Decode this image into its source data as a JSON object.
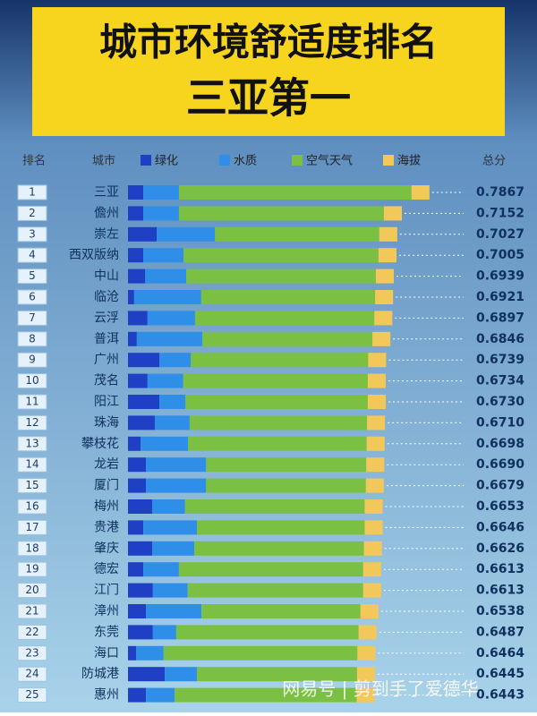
{
  "chart_data": {
    "type": "stacked_barh",
    "title": "城市环境舒适度排名",
    "subtitle": "三亚第一",
    "rank_header": "排名",
    "category_header": "城市",
    "total_header": "总分",
    "watermark": "网易号 | 剪到手了爱德华",
    "ranks": [
      1,
      2,
      3,
      4,
      5,
      6,
      7,
      8,
      9,
      10,
      11,
      12,
      13,
      14,
      15,
      16,
      17,
      18,
      19,
      20,
      21,
      22,
      23,
      24,
      25
    ],
    "categories": [
      "三亚",
      "儋州",
      "崇左",
      "西双版纳",
      "中山",
      "临沧",
      "云浮",
      "普洱",
      "广州",
      "茂名",
      "阳江",
      "珠海",
      "攀枝花",
      "龙岩",
      "厦门",
      "梅州",
      "贵港",
      "肇庆",
      "德宏",
      "江门",
      "漳州",
      "东莞",
      "海口",
      "防城港",
      "惠州"
    ],
    "series": [
      {
        "name": "绿化",
        "color": "#1f3fc4",
        "values": [
          0.04,
          0.04,
          0.075,
          0.04,
          0.045,
          0.016,
          0.051,
          0.023,
          0.082,
          0.051,
          0.082,
          0.07,
          0.033,
          0.047,
          0.047,
          0.063,
          0.04,
          0.063,
          0.04,
          0.065,
          0.047,
          0.065,
          0.021,
          0.096,
          0.047
        ]
      },
      {
        "name": "水质",
        "color": "#2f8ee8",
        "values": [
          0.093,
          0.093,
          0.152,
          0.105,
          0.107,
          0.175,
          0.124,
          0.171,
          0.082,
          0.093,
          0.068,
          0.091,
          0.124,
          0.157,
          0.157,
          0.086,
          0.14,
          0.11,
          0.093,
          0.091,
          0.145,
          0.061,
          0.072,
          0.084,
          0.075
        ]
      },
      {
        "name": "空气天气",
        "color": "#7cc043",
        "values": [
          0.607,
          0.535,
          0.429,
          0.509,
          0.495,
          0.454,
          0.468,
          0.444,
          0.463,
          0.482,
          0.476,
          0.463,
          0.466,
          0.418,
          0.417,
          0.469,
          0.438,
          0.443,
          0.481,
          0.458,
          0.415,
          0.476,
          0.506,
          0.418,
          0.475
        ]
      },
      {
        "name": "海拔",
        "color": "#f2c85a",
        "values": [
          0.047,
          0.047,
          0.047,
          0.047,
          0.047,
          0.047,
          0.047,
          0.047,
          0.047,
          0.047,
          0.047,
          0.047,
          0.047,
          0.047,
          0.047,
          0.047,
          0.047,
          0.047,
          0.047,
          0.047,
          0.047,
          0.047,
          0.047,
          0.047,
          0.047
        ]
      }
    ],
    "totals": [
      0.7867,
      0.7152,
      0.7027,
      0.7005,
      0.6939,
      0.6921,
      0.6897,
      0.6846,
      0.6739,
      0.6734,
      0.673,
      0.671,
      0.6698,
      0.669,
      0.6679,
      0.6653,
      0.6646,
      0.6626,
      0.6613,
      0.6613,
      0.6538,
      0.6487,
      0.6464,
      0.6445,
      0.6443
    ],
    "value_labels": [
      "0.7867",
      "0.7152",
      "0.7027",
      "0.7005",
      "0.6939",
      "0.6921",
      "0.6897",
      "0.6846",
      "0.6739",
      "0.6734",
      "0.6730",
      "0.6710",
      "0.6698",
      "0.6690",
      "0.6679",
      "0.6653",
      "0.6646",
      "0.6626",
      "0.6613",
      "0.6613",
      "0.6538",
      "0.6487",
      "0.6464",
      "0.6445",
      "0.6443"
    ],
    "xlim": [
      0,
      1
    ]
  }
}
